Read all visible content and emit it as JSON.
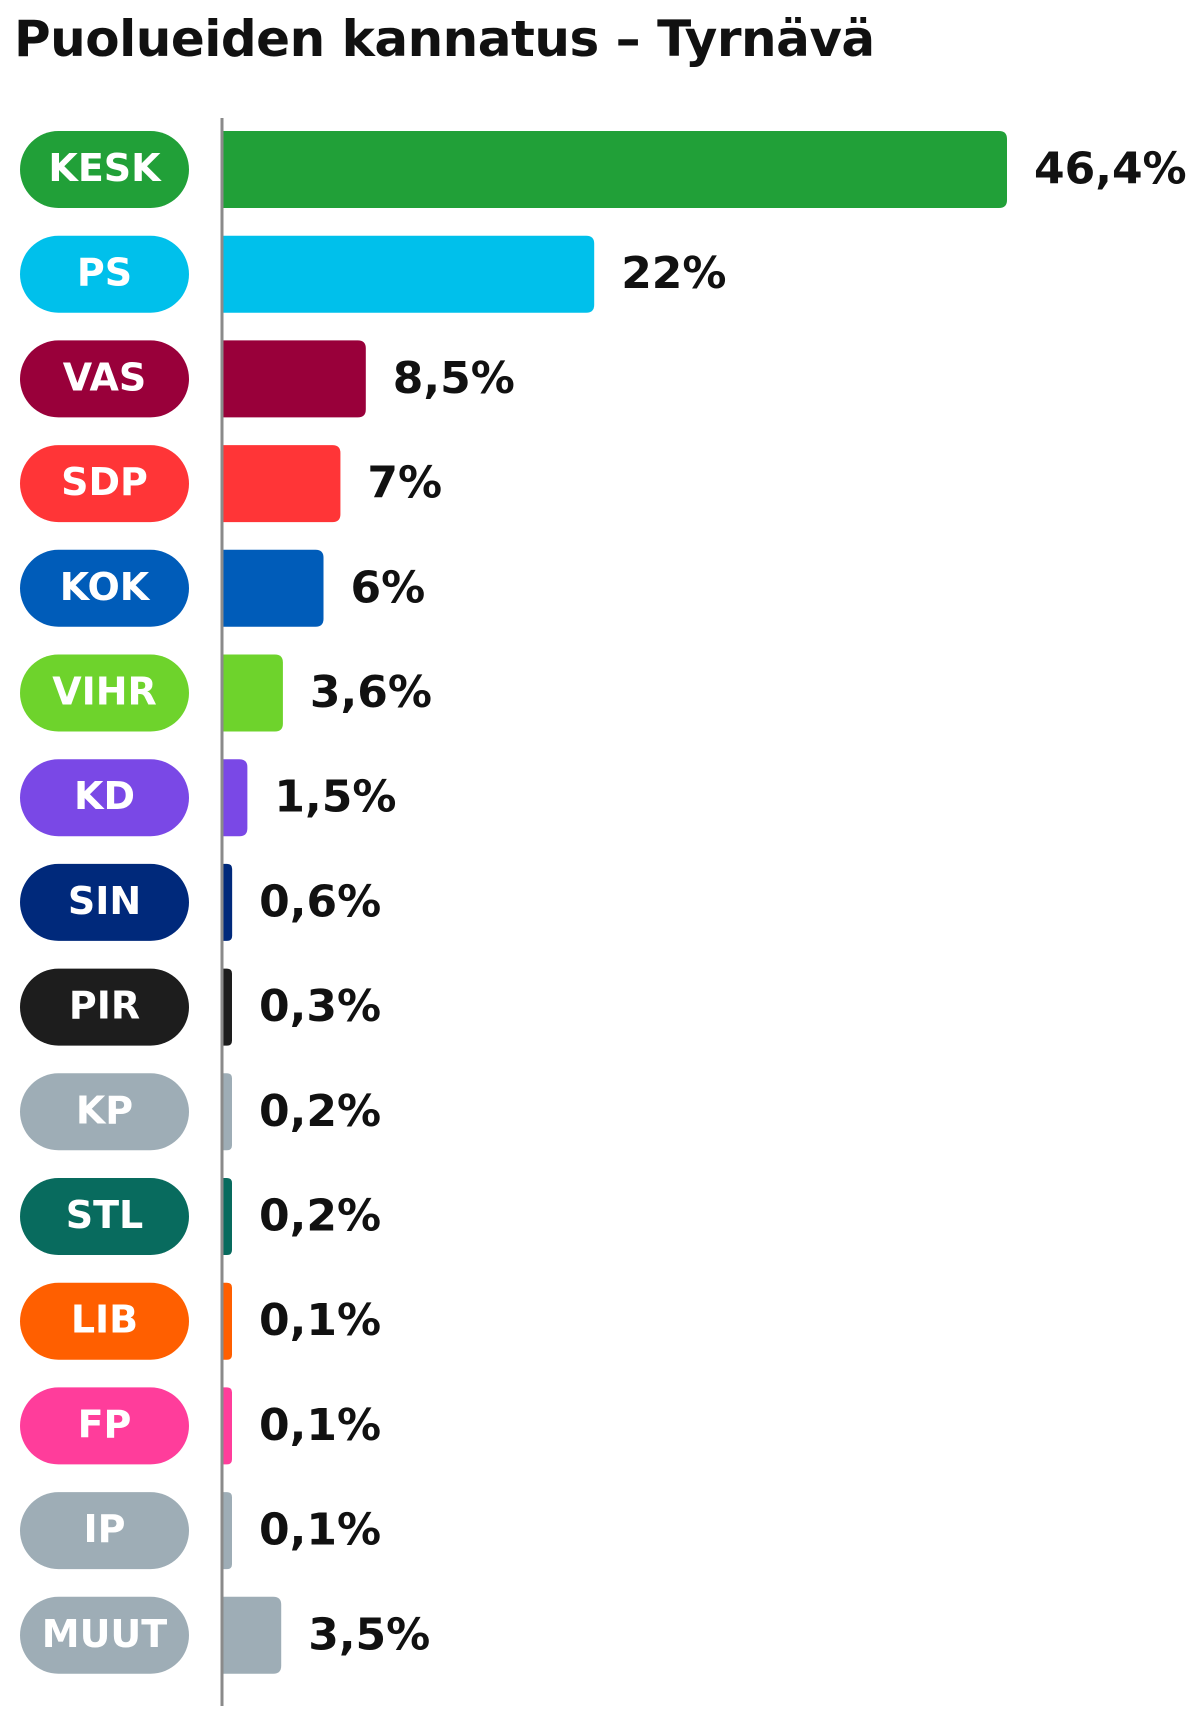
{
  "chart_data": {
    "type": "bar",
    "orientation": "horizontal",
    "title": "Puolueiden kannatus – Tyrnävä",
    "categories": [
      "KESK",
      "PS",
      "VAS",
      "SDP",
      "KOK",
      "VIHR",
      "KD",
      "SIN",
      "PIR",
      "KP",
      "STL",
      "LIB",
      "FP",
      "IP",
      "MUUT"
    ],
    "values": [
      46.4,
      22,
      8.5,
      7,
      6,
      3.6,
      1.5,
      0.6,
      0.3,
      0.2,
      0.2,
      0.1,
      0.1,
      0.1,
      3.5
    ],
    "value_labels": [
      "46,4%",
      "22%",
      "8,5%",
      "7%",
      "6%",
      "3,6%",
      "1,5%",
      "0,6%",
      "0,3%",
      "0,2%",
      "0,2%",
      "0,1%",
      "0,1%",
      "0,1%",
      "3,5%"
    ],
    "colors": [
      "#21a038",
      "#00c0eb",
      "#99003a",
      "#ff3537",
      "#005cb9",
      "#6ed32c",
      "#7a48e6",
      "#00297b",
      "#1d1d1d",
      "#9eadb6",
      "#086b5e",
      "#ff5f00",
      "#ff3d9b",
      "#9eadb6",
      "#9eadb6"
    ],
    "axis_color": "#8a8a8a",
    "grid": false,
    "legend": "none"
  }
}
